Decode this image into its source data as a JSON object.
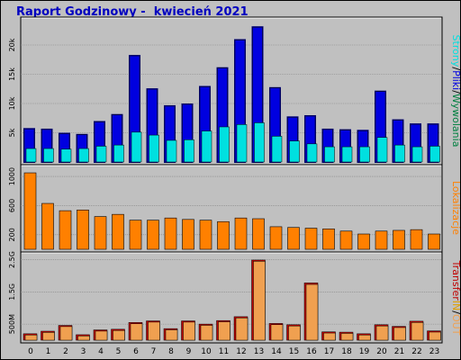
{
  "title": "Raport Godzinowy -  kwiecień 2021",
  "colors": {
    "bg": "#c0c0c0",
    "strony": "#00e0e0",
    "pliki": "#0000e0",
    "wywolania": "#008040",
    "lokalizacje": "#ff8000",
    "transfer_in": "#e0a000",
    "transfer_out": "#f0a050",
    "transfer": "#c00000"
  },
  "chart_data": [
    {
      "type": "bar",
      "name": "strony-pliki-wywolania",
      "categories": [
        "0",
        "1",
        "2",
        "3",
        "4",
        "5",
        "6",
        "7",
        "8",
        "9",
        "10",
        "11",
        "12",
        "13",
        "14",
        "15",
        "16",
        "17",
        "18",
        "19",
        "20",
        "21",
        "22",
        "23"
      ],
      "ylim": [
        0,
        24000
      ],
      "yticks": [
        "5k",
        "10k",
        "15k",
        "20k"
      ],
      "ytick_values": [
        5000,
        10000,
        15000,
        20000
      ],
      "legend_parts": [
        "Strony",
        "/",
        "Pliki",
        "/",
        "Wywolania"
      ],
      "series": [
        {
          "name": "Wywolania",
          "values": [
            5800,
            5700,
            5000,
            4800,
            7000,
            8200,
            18300,
            12600,
            9700,
            10000,
            13000,
            16200,
            21000,
            23200,
            12800,
            7800,
            8000,
            5700,
            5600,
            5500,
            12200,
            7300,
            6600,
            6600
          ]
        },
        {
          "name": "Pliki",
          "values": [
            5800,
            5700,
            5000,
            4800,
            7000,
            8200,
            18300,
            12600,
            9700,
            10000,
            13000,
            16200,
            21000,
            23200,
            12800,
            7800,
            8000,
            5700,
            5600,
            5500,
            12200,
            7300,
            6600,
            6600
          ]
        },
        {
          "name": "Strony",
          "values": [
            2300,
            2300,
            2200,
            2300,
            2700,
            2900,
            5100,
            4600,
            3700,
            3800,
            5300,
            6000,
            6400,
            6700,
            4400,
            3600,
            3100,
            2600,
            2600,
            2600,
            4200,
            2900,
            2600,
            2700
          ]
        }
      ]
    },
    {
      "type": "bar",
      "name": "lokalizacje",
      "categories": [
        "0",
        "1",
        "2",
        "3",
        "4",
        "5",
        "6",
        "7",
        "8",
        "9",
        "10",
        "11",
        "12",
        "13",
        "14",
        "15",
        "16",
        "17",
        "18",
        "19",
        "20",
        "21",
        "22",
        "23"
      ],
      "ylim": [
        0,
        1100
      ],
      "yticks": [
        "200",
        "600",
        "1000"
      ],
      "ytick_values": [
        200,
        600,
        1000
      ],
      "legend_parts": [
        "Lokalizacje"
      ],
      "series": [
        {
          "name": "Lokalizacje",
          "values": [
            1050,
            630,
            530,
            540,
            450,
            480,
            400,
            400,
            430,
            410,
            400,
            380,
            430,
            420,
            310,
            300,
            290,
            280,
            250,
            210,
            250,
            260,
            270,
            210
          ]
        }
      ]
    },
    {
      "type": "bar",
      "name": "transfer",
      "categories": [
        "0",
        "1",
        "2",
        "3",
        "4",
        "5",
        "6",
        "7",
        "8",
        "9",
        "10",
        "11",
        "12",
        "13",
        "14",
        "15",
        "16",
        "17",
        "18",
        "19",
        "20",
        "21",
        "22",
        "23"
      ],
      "ylim": [
        0,
        2.6
      ],
      "yticks": [
        "500M",
        "1.5G",
        "2.5G"
      ],
      "ytick_values": [
        0.5,
        1.5,
        2.5
      ],
      "legend_parts": [
        "Transfer",
        "IN",
        "/",
        "OUT"
      ],
      "series": [
        {
          "name": "IN",
          "values": [
            0.2,
            0.28,
            0.46,
            0.17,
            0.32,
            0.34,
            0.55,
            0.6,
            0.36,
            0.6,
            0.5,
            0.61,
            0.73,
            2.49,
            0.52,
            0.48,
            1.78,
            0.26,
            0.25,
            0.2,
            0.48,
            0.43,
            0.59,
            0.29
          ]
        },
        {
          "name": "OUT",
          "values": [
            0.19,
            0.27,
            0.45,
            0.16,
            0.31,
            0.33,
            0.54,
            0.59,
            0.35,
            0.59,
            0.49,
            0.6,
            0.72,
            2.48,
            0.51,
            0.47,
            1.76,
            0.25,
            0.24,
            0.19,
            0.47,
            0.42,
            0.58,
            0.28
          ]
        }
      ]
    }
  ]
}
